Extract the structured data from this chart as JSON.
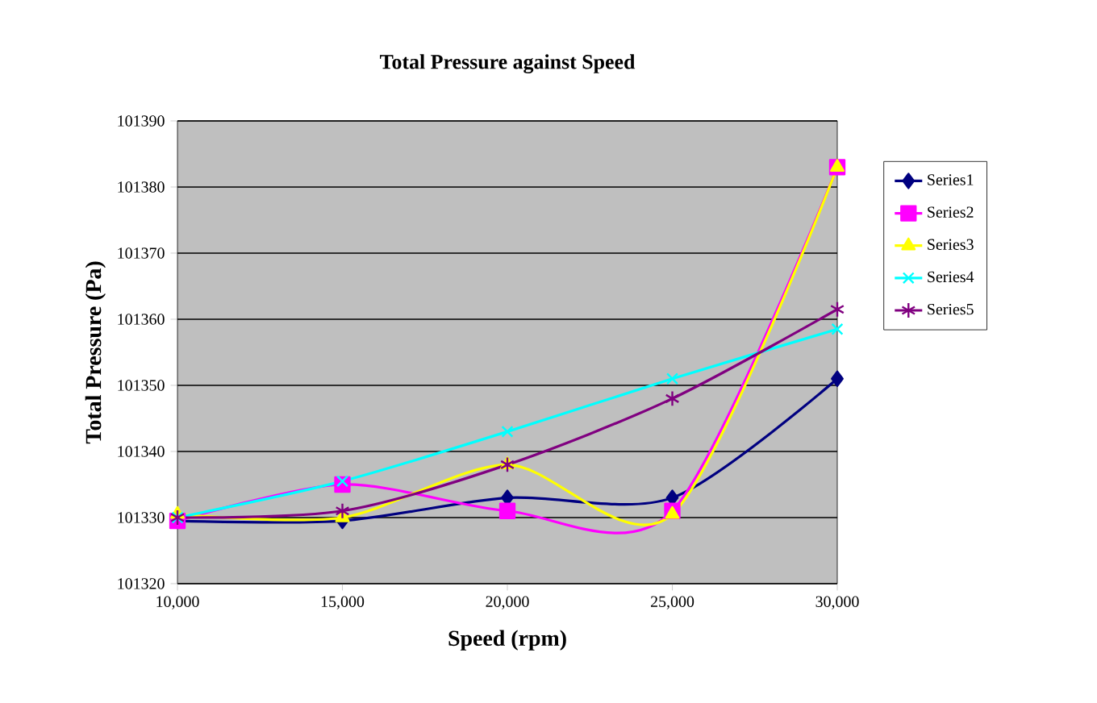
{
  "chart_data": {
    "type": "line",
    "title": "Total Pressure against Speed",
    "xlabel": "Speed (rpm)",
    "ylabel": "Total Pressure (Pa)",
    "x": [
      10000,
      15000,
      20000,
      25000,
      30000
    ],
    "xlim": [
      10000,
      30000
    ],
    "xticks": [
      {
        "value": 10000,
        "label": "10,000"
      },
      {
        "value": 15000,
        "label": "15,000"
      },
      {
        "value": 20000,
        "label": "20,000"
      },
      {
        "value": 25000,
        "label": "25,000"
      },
      {
        "value": 30000,
        "label": "30,000"
      }
    ],
    "ylim": [
      101320,
      101390
    ],
    "yticks": [
      101320,
      101330,
      101340,
      101350,
      101360,
      101370,
      101380,
      101390
    ],
    "grid": "y",
    "legend": "right",
    "series": [
      {
        "name": "Series1",
        "color": "#000080",
        "marker": "diamond",
        "values": [
          101329.5,
          101329.5,
          101333,
          101333,
          101351
        ]
      },
      {
        "name": "Series2",
        "color": "#ff00ff",
        "marker": "square",
        "values": [
          101329.5,
          101335,
          101331,
          101331,
          101383
        ]
      },
      {
        "name": "Series3",
        "color": "#ffff00",
        "marker": "triangle",
        "values": [
          101330.5,
          101330,
          101338,
          101330.5,
          101383
        ]
      },
      {
        "name": "Series4",
        "color": "#00ffff",
        "marker": "cross",
        "values": [
          101330,
          101335.5,
          101343,
          101351,
          101358.5
        ]
      },
      {
        "name": "Series5",
        "color": "#800080",
        "marker": "cross",
        "values": [
          101330,
          101331,
          101338,
          101348,
          101361.5
        ]
      }
    ]
  }
}
